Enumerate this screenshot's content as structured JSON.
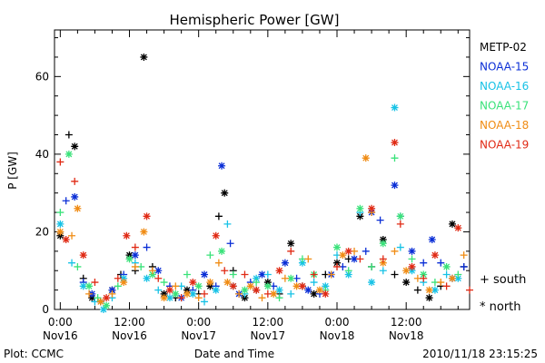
{
  "footer": {
    "left": "Plot: CCMC",
    "right": "2010/11/18 23:15:25"
  },
  "chart_data": {
    "type": "scatter",
    "title": "Hemispheric Power [GW]",
    "xlabel": "Date and Time",
    "ylabel": "P [GW]",
    "x_unit": "hours since 2010-11-16 00:00 UT",
    "xlim": [
      -1,
      71
    ],
    "ylim": [
      0,
      72
    ],
    "yticks": [
      0,
      20,
      40,
      60
    ],
    "xticks": [
      {
        "x": 0,
        "time": "0:00",
        "date": "Nov16"
      },
      {
        "x": 12,
        "time": "12:00",
        "date": "Nov16"
      },
      {
        "x": 24,
        "time": "0:00",
        "date": "Nov17"
      },
      {
        "x": 36,
        "time": "12:00",
        "date": "Nov17"
      },
      {
        "x": 48,
        "time": "0:00",
        "date": "Nov18"
      },
      {
        "x": 60,
        "time": "12:00",
        "date": "Nov18"
      }
    ],
    "marker_legend": [
      {
        "symbol": "+",
        "label": "south"
      },
      {
        "symbol": "*",
        "label": "north"
      }
    ],
    "series": [
      {
        "name": "METP-02",
        "color": "#000000",
        "points": [
          [
            0,
            19
          ],
          [
            1.5,
            45
          ],
          [
            2.5,
            42
          ],
          [
            4,
            8
          ],
          [
            5.5,
            3
          ],
          [
            7,
            2
          ],
          [
            9,
            5
          ],
          [
            10.5,
            9
          ],
          [
            12,
            14
          ],
          [
            13,
            10
          ],
          [
            14.5,
            65
          ],
          [
            16,
            11
          ],
          [
            18,
            4
          ],
          [
            20,
            3
          ],
          [
            22,
            5
          ],
          [
            24,
            4
          ],
          [
            26,
            6
          ],
          [
            27.5,
            24
          ],
          [
            28.5,
            30
          ],
          [
            30,
            10
          ],
          [
            32,
            3
          ],
          [
            34,
            5
          ],
          [
            36,
            7
          ],
          [
            38,
            4
          ],
          [
            40,
            17
          ],
          [
            42,
            6
          ],
          [
            44,
            4
          ],
          [
            46,
            9
          ],
          [
            48,
            12
          ],
          [
            50,
            13
          ],
          [
            52,
            24
          ],
          [
            54,
            11
          ],
          [
            56,
            18
          ],
          [
            58,
            9
          ],
          [
            60,
            7
          ],
          [
            62,
            5
          ],
          [
            64,
            3
          ],
          [
            66,
            6
          ],
          [
            68,
            22
          ],
          [
            70,
            11
          ]
        ]
      },
      {
        "name": "NOAA-15",
        "color": "#0a2ed6",
        "points": [
          [
            1,
            28
          ],
          [
            2.5,
            29
          ],
          [
            4,
            7
          ],
          [
            5.5,
            4
          ],
          [
            7,
            2
          ],
          [
            9,
            5
          ],
          [
            11,
            9
          ],
          [
            13,
            14
          ],
          [
            15,
            16
          ],
          [
            17,
            10
          ],
          [
            19,
            6
          ],
          [
            21,
            3
          ],
          [
            23,
            5
          ],
          [
            25,
            9
          ],
          [
            27,
            6
          ],
          [
            28,
            37
          ],
          [
            29.5,
            17
          ],
          [
            31,
            4
          ],
          [
            33,
            7
          ],
          [
            35,
            9
          ],
          [
            37,
            6
          ],
          [
            39,
            12
          ],
          [
            41,
            8
          ],
          [
            43,
            5
          ],
          [
            45,
            4
          ],
          [
            47,
            9
          ],
          [
            49,
            11
          ],
          [
            51,
            13
          ],
          [
            53,
            15
          ],
          [
            54,
            25
          ],
          [
            55.5,
            23
          ],
          [
            58,
            32
          ],
          [
            59,
            24
          ],
          [
            61,
            15
          ],
          [
            63,
            12
          ],
          [
            64.5,
            18
          ],
          [
            66,
            12
          ],
          [
            68,
            8
          ],
          [
            70,
            11
          ]
        ]
      },
      {
        "name": "NOAA-16",
        "color": "#17c2e6",
        "points": [
          [
            0,
            22
          ],
          [
            2,
            12
          ],
          [
            4,
            6
          ],
          [
            6,
            2
          ],
          [
            7.5,
            0
          ],
          [
            9,
            3
          ],
          [
            11,
            8
          ],
          [
            13,
            12
          ],
          [
            15,
            8
          ],
          [
            17,
            5
          ],
          [
            19,
            3
          ],
          [
            21,
            6
          ],
          [
            23,
            4
          ],
          [
            25,
            2
          ],
          [
            27,
            5
          ],
          [
            29,
            22
          ],
          [
            30,
            6
          ],
          [
            32,
            4
          ],
          [
            34,
            8
          ],
          [
            36,
            9
          ],
          [
            38,
            5
          ],
          [
            40,
            4
          ],
          [
            42,
            12
          ],
          [
            44,
            7
          ],
          [
            46,
            6
          ],
          [
            48,
            14
          ],
          [
            50,
            9
          ],
          [
            52,
            25
          ],
          [
            54,
            7
          ],
          [
            56,
            10
          ],
          [
            58,
            52
          ],
          [
            59,
            16
          ],
          [
            61,
            10
          ],
          [
            63,
            7
          ],
          [
            65,
            5
          ],
          [
            67,
            9
          ],
          [
            69,
            8
          ]
        ]
      },
      {
        "name": "NOAA-17",
        "color": "#3ae27a",
        "points": [
          [
            0,
            25
          ],
          [
            1.5,
            40
          ],
          [
            3,
            11
          ],
          [
            5,
            6
          ],
          [
            6.5,
            3
          ],
          [
            8,
            1
          ],
          [
            10,
            6
          ],
          [
            12,
            13
          ],
          [
            14,
            11
          ],
          [
            16,
            9
          ],
          [
            18,
            7
          ],
          [
            20,
            4
          ],
          [
            22,
            9
          ],
          [
            24,
            6
          ],
          [
            26,
            14
          ],
          [
            28,
            15
          ],
          [
            30,
            9
          ],
          [
            32,
            5
          ],
          [
            34,
            7
          ],
          [
            36,
            6
          ],
          [
            38,
            3
          ],
          [
            40,
            8
          ],
          [
            42,
            13
          ],
          [
            44,
            9
          ],
          [
            46,
            5
          ],
          [
            48,
            16
          ],
          [
            50,
            10
          ],
          [
            52,
            26
          ],
          [
            54,
            11
          ],
          [
            56,
            17
          ],
          [
            58,
            39
          ],
          [
            59,
            24
          ],
          [
            61,
            13
          ],
          [
            63,
            9
          ],
          [
            65,
            7
          ],
          [
            67,
            11
          ],
          [
            69,
            9
          ]
        ]
      },
      {
        "name": "NOAA-18",
        "color": "#f08c14",
        "points": [
          [
            0,
            20
          ],
          [
            2,
            19
          ],
          [
            3,
            26
          ],
          [
            5,
            4
          ],
          [
            7,
            2
          ],
          [
            9,
            4
          ],
          [
            11,
            7
          ],
          [
            13,
            11
          ],
          [
            14.5,
            20
          ],
          [
            16,
            10
          ],
          [
            18,
            3
          ],
          [
            20,
            6
          ],
          [
            22,
            4
          ],
          [
            24,
            3
          ],
          [
            26,
            7
          ],
          [
            27.5,
            12
          ],
          [
            29,
            7
          ],
          [
            31,
            4
          ],
          [
            33,
            6
          ],
          [
            35,
            3
          ],
          [
            37,
            4
          ],
          [
            39,
            8
          ],
          [
            41,
            6
          ],
          [
            43,
            13
          ],
          [
            45,
            5
          ],
          [
            47,
            9
          ],
          [
            49,
            14
          ],
          [
            51,
            15
          ],
          [
            53,
            39
          ],
          [
            54,
            25
          ],
          [
            56,
            12
          ],
          [
            58,
            15
          ],
          [
            60,
            10
          ],
          [
            62,
            8
          ],
          [
            64,
            5
          ],
          [
            66,
            7
          ],
          [
            68,
            8
          ],
          [
            70,
            14
          ]
        ]
      },
      {
        "name": "NOAA-19",
        "color": "#e02a14",
        "points": [
          [
            0,
            38
          ],
          [
            1,
            18
          ],
          [
            2.5,
            33
          ],
          [
            4,
            14
          ],
          [
            6,
            7
          ],
          [
            8,
            3
          ],
          [
            10,
            8
          ],
          [
            11.5,
            19
          ],
          [
            13,
            16
          ],
          [
            15,
            24
          ],
          [
            17,
            8
          ],
          [
            19,
            5
          ],
          [
            21,
            3
          ],
          [
            23,
            7
          ],
          [
            25,
            4
          ],
          [
            27,
            19
          ],
          [
            28.5,
            10
          ],
          [
            30,
            6
          ],
          [
            32,
            9
          ],
          [
            34,
            5
          ],
          [
            36,
            4
          ],
          [
            38,
            10
          ],
          [
            40,
            15
          ],
          [
            42,
            6
          ],
          [
            44,
            9
          ],
          [
            46,
            4
          ],
          [
            48,
            11
          ],
          [
            50,
            15
          ],
          [
            52,
            13
          ],
          [
            54,
            26
          ],
          [
            56,
            13
          ],
          [
            58,
            43
          ],
          [
            59,
            22
          ],
          [
            61,
            11
          ],
          [
            63,
            8
          ],
          [
            65,
            14
          ],
          [
            67,
            6
          ],
          [
            69,
            21
          ],
          [
            71,
            5
          ]
        ]
      }
    ]
  }
}
